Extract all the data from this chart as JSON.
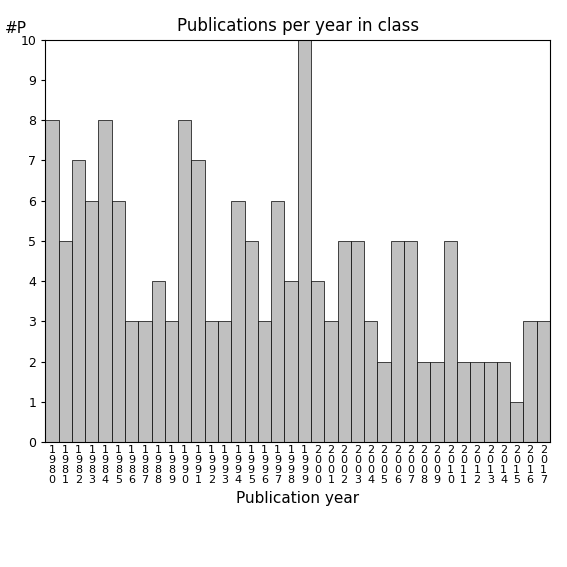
{
  "title": "Publications per year in class",
  "xlabel": "Publication year",
  "ylabel": "#P",
  "years": [
    "1980",
    "1981",
    "1982",
    "1983",
    "1984",
    "1985",
    "1986",
    "1987",
    "1988",
    "1989",
    "1990",
    "1991",
    "1992",
    "1993",
    "1994",
    "1995",
    "1996",
    "1997",
    "1998",
    "1999",
    "2000",
    "2001",
    "2002",
    "2003",
    "2004",
    "2005",
    "2006",
    "2007",
    "2008",
    "2009",
    "2010",
    "2011",
    "2012",
    "2013",
    "2014",
    "2015",
    "2016",
    "2017"
  ],
  "values": [
    8,
    5,
    7,
    6,
    8,
    6,
    3,
    3,
    4,
    3,
    8,
    7,
    3,
    3,
    6,
    5,
    3,
    6,
    4,
    10,
    4,
    3,
    5,
    5,
    3,
    2,
    5,
    5,
    2,
    2,
    5,
    2,
    2,
    2,
    2,
    1,
    3,
    3
  ],
  "bar_color": "#c0c0c0",
  "bar_edge_color": "#000000",
  "ylim": [
    0,
    10
  ],
  "yticks": [
    0,
    1,
    2,
    3,
    4,
    5,
    6,
    7,
    8,
    9,
    10
  ],
  "background_color": "#ffffff",
  "title_fontsize": 12,
  "axis_label_fontsize": 11,
  "tick_fontsize": 8
}
